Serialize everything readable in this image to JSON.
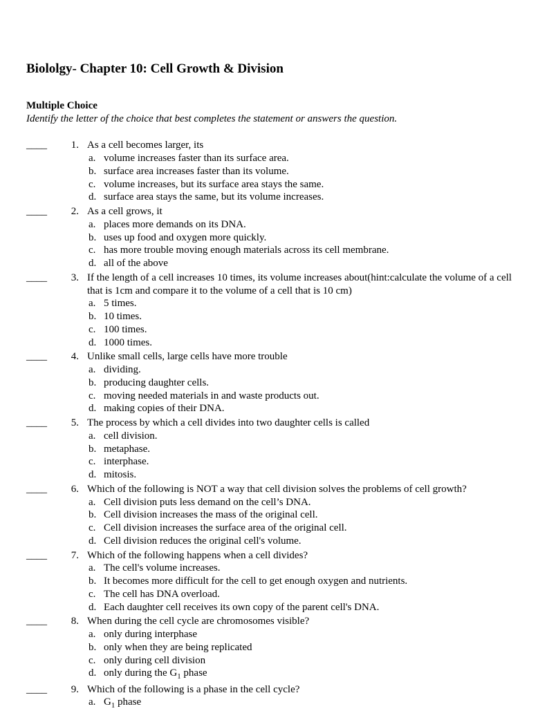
{
  "title": "Biololgy- Chapter 10: Cell Growth & Division",
  "section_label": "Multiple Choice",
  "section_instruction": "Identify the letter of the choice that best completes the statement or answers the question.",
  "blank": "____",
  "questions": [
    {
      "num": "1.",
      "stem": "As a cell becomes larger, its",
      "choices": [
        {
          "l": "a.",
          "t": "volume increases faster than its surface area."
        },
        {
          "l": "b.",
          "t": "surface area increases faster than its volume."
        },
        {
          "l": "c.",
          "t": "volume increases, but its surface area stays the same."
        },
        {
          "l": "d.",
          "t": "surface area stays the same, but its volume increases."
        }
      ]
    },
    {
      "num": "2.",
      "stem": "As a cell grows, it",
      "choices": [
        {
          "l": "a.",
          "t": "places more demands on its DNA."
        },
        {
          "l": "b.",
          "t": "uses up food and oxygen more quickly."
        },
        {
          "l": "c.",
          "t": "has more trouble moving enough materials across its cell membrane."
        },
        {
          "l": "d.",
          "t": "all of the above"
        }
      ]
    },
    {
      "num": "3.",
      "stem": "If the length of a cell increases 10 times, its volume increases about(hint:calculate the volume of a cell that is 1cm and compare it to the volume of a cell that is 10 cm)",
      "choices": [
        {
          "l": "a.",
          "t": "5 times."
        },
        {
          "l": "b.",
          "t": "10 times."
        },
        {
          "l": "c.",
          "t": "100 times."
        },
        {
          "l": "d.",
          "t": "1000 times."
        }
      ]
    },
    {
      "num": "4.",
      "stem": "Unlike small cells, large cells have more trouble",
      "choices": [
        {
          "l": "a.",
          "t": "dividing."
        },
        {
          "l": "b.",
          "t": "producing daughter cells."
        },
        {
          "l": "c.",
          "t": "moving needed materials in and waste products out."
        },
        {
          "l": "d.",
          "t": "making copies of their DNA."
        }
      ]
    },
    {
      "num": "5.",
      "stem": "The process by which a cell divides into two daughter cells is called",
      "choices": [
        {
          "l": "a.",
          "t": "cell division."
        },
        {
          "l": "b.",
          "t": "metaphase."
        },
        {
          "l": "c.",
          "t": "interphase."
        },
        {
          "l": "d.",
          "t": "mitosis."
        }
      ]
    },
    {
      "num": "6.",
      "stem": "Which of the following is NOT a way that cell division solves the problems of cell growth?",
      "choices": [
        {
          "l": "a.",
          "t": "Cell division puts less demand on the cell’s  DNA."
        },
        {
          "l": "b.",
          "t": "Cell division increases the mass of the original cell."
        },
        {
          "l": "c.",
          "t": "Cell division increases the surface area of the original cell."
        },
        {
          "l": "d.",
          "t": "Cell division reduces the original cell's volume."
        }
      ]
    },
    {
      "num": "7.",
      "stem": "Which of the following happens when a cell divides?",
      "choices": [
        {
          "l": "a.",
          "t": "The cell's volume increases."
        },
        {
          "l": "b.",
          "t": "It becomes more difficult for the cell to get enough oxygen and nutrients."
        },
        {
          "l": "c.",
          "t": "The cell has DNA overload."
        },
        {
          "l": "d.",
          "t": "Each daughter cell receives its own copy of the parent cell's DNA."
        }
      ]
    },
    {
      "num": "8.",
      "stem": "When during the cell cycle are chromosomes visible?",
      "choices": [
        {
          "l": "a.",
          "t": "only during interphase"
        },
        {
          "l": "b.",
          "t": "only when they are being replicated"
        },
        {
          "l": "c.",
          "t": "only during cell division"
        },
        {
          "l": "d.",
          "t": "only during the G₁ phase"
        }
      ]
    },
    {
      "num": "9.",
      "stem": "Which of the following is a phase in the cell cycle?",
      "choices": [
        {
          "l": "a.",
          "t": "G₁ phase"
        }
      ]
    }
  ]
}
